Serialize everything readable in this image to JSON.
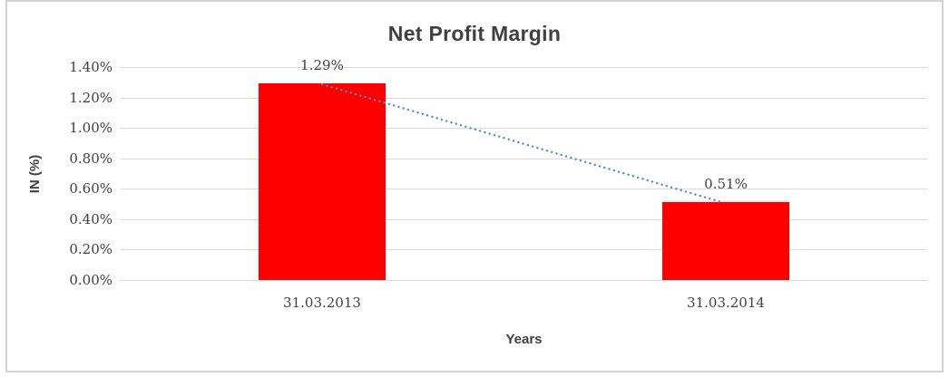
{
  "chart_data": {
    "type": "bar",
    "title": "Net Profit Margin",
    "xlabel": "Years",
    "ylabel": "IN (%)",
    "categories": [
      "31.03.2013",
      "31.03.2014"
    ],
    "values": [
      1.29,
      0.51
    ],
    "data_labels": [
      "1.29%",
      "0.51%"
    ],
    "y_ticks": [
      "1.40%",
      "1.20%",
      "1.00%",
      "0.80%",
      "0.60%",
      "0.40%",
      "0.20%",
      "0.00%"
    ],
    "ylim": [
      0,
      1.4
    ],
    "grid": true,
    "legend": "none",
    "trendline": {
      "type": "linear",
      "style": "dotted-round",
      "from": "31.03.2013",
      "to": "31.03.2014"
    },
    "colors": {
      "bar": "#ff0000",
      "gridline": "#d9d9d9",
      "text": "#404040",
      "trendline": "#4f8fd0",
      "frame_border": "#d2d2d2",
      "background": "#ffffff"
    }
  }
}
